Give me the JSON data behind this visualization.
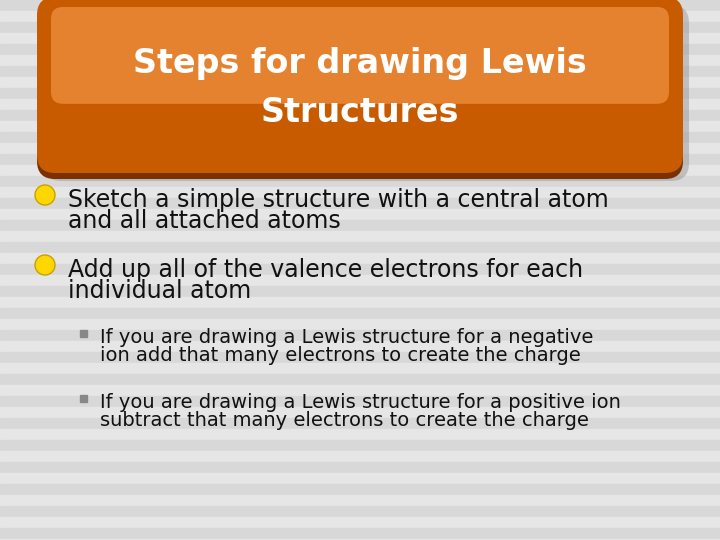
{
  "title_line1": "Steps for drawing Lewis",
  "title_line2": "Structures",
  "title_color": "#FFFFFF",
  "background_color": "#E0E0E0",
  "bullet_color": "#FFD700",
  "bullet1_line1": "Sketch a simple structure with a central atom",
  "bullet1_line2": "and all attached atoms",
  "bullet2_line1": "Add up all of the valence electrons for each",
  "bullet2_line2": "individual atom",
  "sub1_line1": "If you are drawing a Lewis structure for a negative",
  "sub1_line2": "ion add that many electrons to create the charge",
  "sub2_line1": "If you are drawing a Lewis structure for a positive ion",
  "sub2_line2": "subtract that many electrons to create the charge",
  "bullet_fontsize": 17,
  "title_fontsize": 24,
  "sub_fontsize": 14,
  "stripe_color1": "#D8D8D8",
  "stripe_color2": "#E6E6E6",
  "btn_dark": "#7A3000",
  "btn_mid": "#C85A00",
  "btn_light": "#E87828",
  "btn_highlight": "#F09040",
  "shadow_color": "#999999"
}
